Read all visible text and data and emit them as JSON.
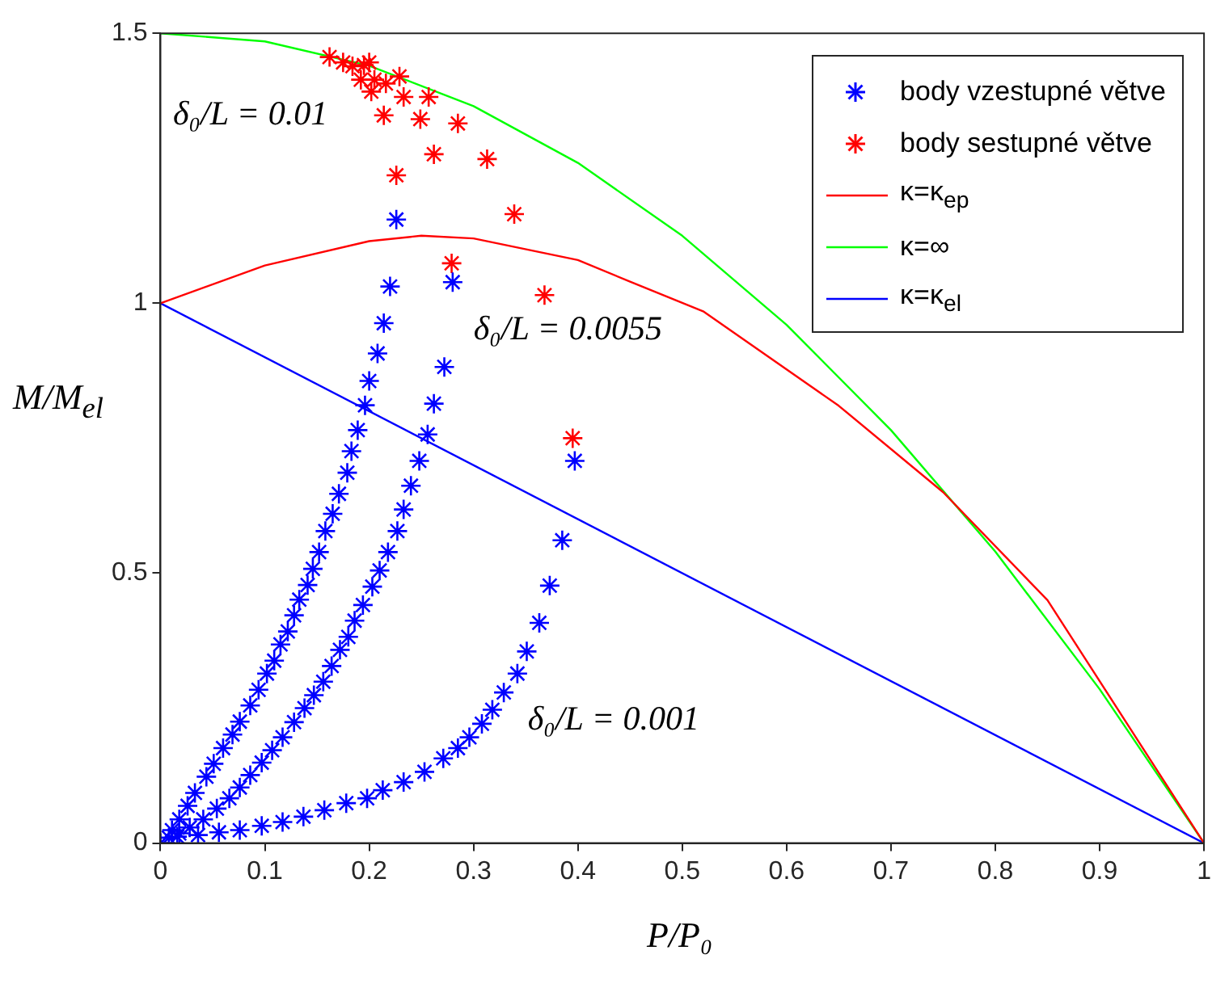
{
  "chart_data": {
    "type": "scatter",
    "xlabel": "P/P₀",
    "ylabel": "M/M$_{el}$",
    "xlim": [
      0,
      1
    ],
    "xticks": [
      0,
      0.1,
      0.2,
      0.3,
      0.4,
      0.5,
      0.6,
      0.7,
      0.8,
      0.9,
      1
    ],
    "ylim": [
      0,
      1.5
    ],
    "yticks": [
      0,
      0.5,
      1,
      1.5
    ],
    "grid": false,
    "legend": "top right",
    "line_style": "solid",
    "annotations": [
      "δ₀/L = 0.01",
      "δ₀/L = 0.0055",
      "δ₀/L = 0.001"
    ],
    "series": [
      {
        "name": "body vzestupné větve",
        "type": "scatter",
        "marker": "cross",
        "color": "#0000ff",
        "x": [
          0,
          0.008,
          0.011,
          0.018,
          0.026,
          0.033,
          0.044,
          0.051,
          0.06,
          0.069,
          0.076,
          0.086,
          0.094,
          0.102,
          0.109,
          0.115,
          0.122,
          0.128,
          0.133,
          0.141,
          0.146,
          0.152,
          0.158,
          0.165,
          0.171,
          0.179,
          0.183,
          0.189,
          0.196,
          0.2,
          0.208,
          0.214,
          0.22,
          0.226,
          0.018,
          0.028,
          0.041,
          0.054,
          0.066,
          0.076,
          0.086,
          0.097,
          0.107,
          0.117,
          0.128,
          0.138,
          0.147,
          0.156,
          0.164,
          0.172,
          0.18,
          0.186,
          0.194,
          0.203,
          0.21,
          0.218,
          0.227,
          0.233,
          0.24,
          0.248,
          0.256,
          0.262,
          0.272,
          0.28,
          0.016,
          0.036,
          0.056,
          0.076,
          0.097,
          0.117,
          0.137,
          0.157,
          0.178,
          0.198,
          0.213,
          0.233,
          0.253,
          0.271,
          0.285,
          0.296,
          0.308,
          0.318,
          0.329,
          0.342,
          0.351,
          0.363,
          0.373,
          0.385,
          0.397
        ],
        "values": [
          0,
          0.01,
          0.024,
          0.044,
          0.069,
          0.093,
          0.123,
          0.147,
          0.176,
          0.201,
          0.225,
          0.255,
          0.284,
          0.314,
          0.338,
          0.368,
          0.392,
          0.422,
          0.451,
          0.478,
          0.508,
          0.539,
          0.578,
          0.61,
          0.647,
          0.686,
          0.726,
          0.765,
          0.811,
          0.856,
          0.907,
          0.963,
          1.031,
          1.155,
          0.018,
          0.029,
          0.044,
          0.064,
          0.083,
          0.103,
          0.126,
          0.149,
          0.172,
          0.196,
          0.224,
          0.25,
          0.274,
          0.299,
          0.328,
          0.358,
          0.382,
          0.412,
          0.441,
          0.475,
          0.505,
          0.539,
          0.578,
          0.618,
          0.662,
          0.708,
          0.757,
          0.814,
          0.882,
          1.039,
          0.012,
          0.015,
          0.02,
          0.024,
          0.032,
          0.039,
          0.049,
          0.061,
          0.074,
          0.083,
          0.098,
          0.113,
          0.132,
          0.157,
          0.176,
          0.196,
          0.221,
          0.247,
          0.279,
          0.314,
          0.355,
          0.408,
          0.477,
          0.561,
          0.708
        ]
      },
      {
        "name": "body sestupné větve",
        "type": "scatter",
        "marker": "cross",
        "color": "#ff0000",
        "x": [
          0.162,
          0.175,
          0.184,
          0.195,
          0.2,
          0.192,
          0.205,
          0.216,
          0.229,
          0.202,
          0.233,
          0.257,
          0.214,
          0.249,
          0.285,
          0.262,
          0.313,
          0.226,
          0.339,
          0.279,
          0.368,
          0.395
        ],
        "values": [
          1.456,
          1.446,
          1.439,
          1.441,
          1.446,
          1.414,
          1.414,
          1.407,
          1.42,
          1.392,
          1.382,
          1.382,
          1.348,
          1.341,
          1.333,
          1.276,
          1.267,
          1.237,
          1.165,
          1.074,
          1.015,
          0.75
        ]
      },
      {
        "name": "κ=κ$_{ep}$",
        "type": "line",
        "marker": "none",
        "color": "#ff0000",
        "x": [
          0,
          0.1,
          0.2,
          0.25,
          0.3,
          0.4,
          0.45,
          0.52,
          0.65,
          0.75,
          0.85,
          0.95,
          1
        ],
        "values": [
          1,
          1.07,
          1.115,
          1.125,
          1.12,
          1.08,
          1.04,
          0.985,
          0.81,
          0.65,
          0.45,
          0.15,
          0
        ]
      },
      {
        "name": "κ=∞",
        "type": "line",
        "marker": "none",
        "color": "#00ff00",
        "x": [
          0,
          0.1,
          0.2,
          0.3,
          0.4,
          0.5,
          0.6,
          0.7,
          0.8,
          0.9,
          1
        ],
        "values": [
          1.5,
          1.485,
          1.44,
          1.365,
          1.26,
          1.125,
          0.96,
          0.765,
          0.54,
          0.285,
          0
        ]
      },
      {
        "name": "κ=κ$_{el}$",
        "type": "line",
        "marker": "none",
        "color": "#0000ff",
        "x": [
          0,
          1
        ],
        "values": [
          1,
          0
        ]
      }
    ]
  }
}
